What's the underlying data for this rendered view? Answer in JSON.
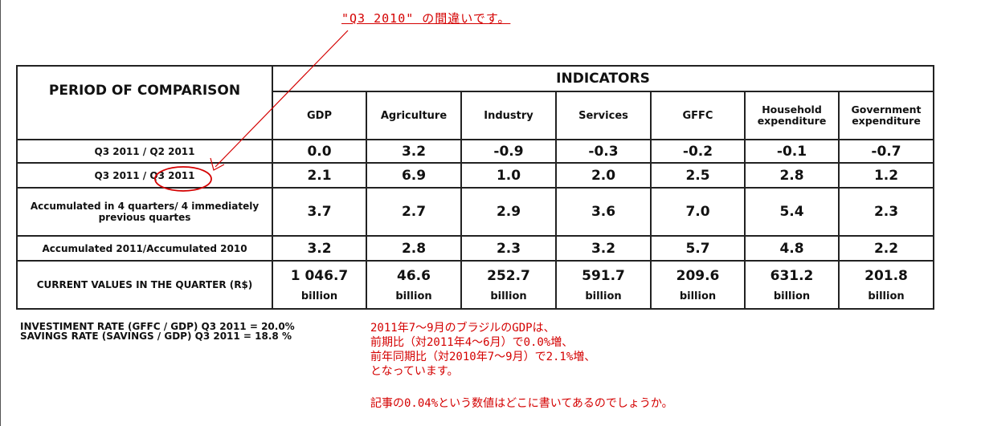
{
  "annotation_top": "\"Q3 2010\" の間違いです。",
  "table": {
    "period_header": "PERIOD OF COMPARISON",
    "indicators_header": "INDICATORS",
    "columns": [
      "GDP",
      "Agriculture",
      "Industry",
      "Services",
      "GFFC",
      "Household expenditure",
      "Government expenditure"
    ],
    "rows": [
      {
        "label": "Q3 2011 / Q2 2011",
        "values": [
          "0.0",
          "3.2",
          "-0.9",
          "-0.3",
          "-0.2",
          "-0.1",
          "-0.7"
        ]
      },
      {
        "label": "Q3 2011 / Q3 2011",
        "values": [
          "2.1",
          "6.9",
          "1.0",
          "2.0",
          "2.5",
          "2.8",
          "1.2"
        ]
      },
      {
        "label": "Accumulated in 4 quarters/ 4 immediately previous quartes",
        "values": [
          "3.7",
          "2.7",
          "2.9",
          "3.6",
          "7.0",
          "5.4",
          "2.3"
        ]
      },
      {
        "label": "Accumulated 2011/Accumulated 2010",
        "values": [
          "3.2",
          "2.8",
          "2.3",
          "3.2",
          "5.7",
          "4.8",
          "2.2"
        ]
      },
      {
        "label": "CURRENT VALUES IN THE QUARTER (R$)",
        "values": [
          "1 046.7",
          "46.6",
          "252.7",
          "591.7",
          "209.6",
          "631.2",
          "201.8"
        ],
        "unit": "billion"
      }
    ]
  },
  "rates": {
    "investment": "INVESTIMENT RATE (GFFC / GDP) Q3 2011 = 20.0%",
    "savings": "SAVINGS RATE (SAVINGS / GDP) Q3 2011 = 18.8 %"
  },
  "note_lines": [
    "2011年7～9月のブラジルのGDPは、",
    "前期比（対2011年4～6月）で0.0%増、",
    "前年同期比（対2010年7～9月）で2.1%増、",
    "となっています。"
  ],
  "note_question": "記事の0.04%という数値はどこに書いてあるのでしょうか。",
  "colors": {
    "annotation": "#d40000",
    "text": "#111111"
  }
}
